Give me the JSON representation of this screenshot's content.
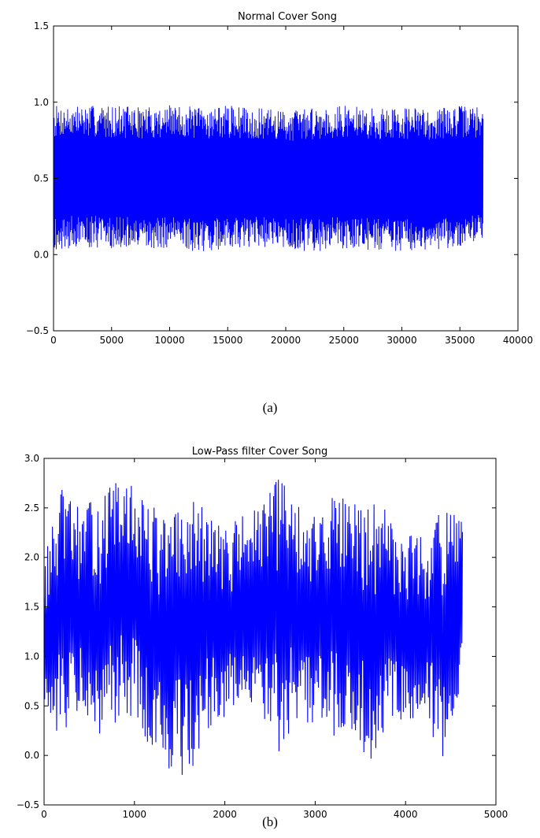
{
  "captions": {
    "a": "(a)",
    "b": "(b)"
  },
  "colors": {
    "series": "#0000ff",
    "axes": "#000000",
    "background": "#ffffff"
  },
  "chart_data": [
    {
      "type": "line",
      "title": "Normal Cover Song",
      "xlabel": "",
      "ylabel": "",
      "xlim": [
        0,
        40000
      ],
      "ylim": [
        -0.5,
        1.5
      ],
      "xticks": [
        0,
        5000,
        10000,
        15000,
        20000,
        25000,
        30000,
        35000,
        40000
      ],
      "xtick_labels": [
        "0",
        "5000",
        "10000",
        "15000",
        "20000",
        "25000",
        "30000",
        "35000",
        "40000"
      ],
      "yticks": [
        -0.5,
        0.0,
        0.5,
        1.0,
        1.5
      ],
      "ytick_labels": [
        "−0.5",
        "0.0",
        "0.5",
        "1.0",
        "1.5"
      ],
      "grid": false,
      "series": [
        {
          "x_range": [
            0,
            37000
          ],
          "envelope_x": [
            0,
            2500,
            5000,
            7500,
            10000,
            12500,
            15000,
            17500,
            20000,
            22500,
            25000,
            27500,
            30000,
            32500,
            35000,
            37000
          ],
          "envelope_upper": [
            0.98,
            0.98,
            0.98,
            0.97,
            0.98,
            0.97,
            0.98,
            0.96,
            0.95,
            0.97,
            0.98,
            0.96,
            0.97,
            0.96,
            0.98,
            0.97
          ],
          "envelope_lower": [
            0.03,
            0.05,
            0.04,
            0.03,
            0.04,
            0.02,
            0.03,
            0.05,
            0.03,
            0.02,
            0.04,
            0.03,
            0.02,
            0.03,
            0.04,
            0.07
          ]
        }
      ]
    },
    {
      "type": "line",
      "title": "Low-Pass filter Cover Song",
      "xlabel": "",
      "ylabel": "",
      "xlim": [
        0,
        5000
      ],
      "ylim": [
        -0.5,
        3.0
      ],
      "xticks": [
        0,
        1000,
        2000,
        3000,
        4000,
        5000
      ],
      "xtick_labels": [
        "0",
        "1000",
        "2000",
        "3000",
        "4000",
        "5000"
      ],
      "yticks": [
        -0.5,
        0.0,
        0.5,
        1.0,
        1.5,
        2.0,
        2.5,
        3.0
      ],
      "ytick_labels": [
        "−0.5",
        "0.0",
        "0.5",
        "1.0",
        "1.5",
        "2.0",
        "2.5",
        "3.0"
      ],
      "grid": false,
      "series": [
        {
          "x_range": [
            0,
            4630
          ],
          "envelope_x": [
            0,
            200,
            400,
            600,
            800,
            1000,
            1200,
            1400,
            1600,
            1800,
            2000,
            2200,
            2400,
            2600,
            2800,
            3000,
            3200,
            3400,
            3600,
            3800,
            4000,
            4200,
            4400,
            4630
          ],
          "envelope_upper": [
            2.0,
            2.7,
            2.5,
            2.6,
            2.78,
            2.72,
            2.55,
            2.4,
            2.6,
            2.5,
            2.3,
            2.45,
            2.5,
            2.85,
            2.6,
            2.4,
            2.7,
            2.55,
            2.6,
            2.5,
            2.3,
            2.2,
            2.5,
            2.4
          ],
          "envelope_lower": [
            0.3,
            0.1,
            0.5,
            0.2,
            0.3,
            0.4,
            0.0,
            -0.15,
            -0.25,
            0.1,
            0.4,
            0.5,
            0.4,
            0.0,
            0.3,
            0.3,
            0.2,
            0.2,
            -0.1,
            0.3,
            0.2,
            0.4,
            -0.05,
            0.7
          ]
        }
      ]
    }
  ]
}
